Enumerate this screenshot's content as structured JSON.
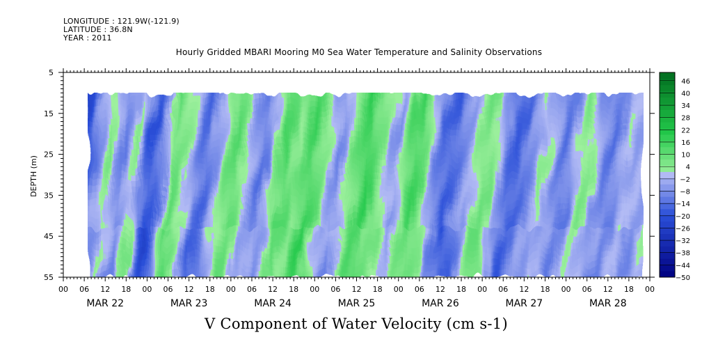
{
  "header": {
    "longitude": "LONGITUDE : 121.9W(-121.9)",
    "latitude": "LATITUDE : 36.8N",
    "year": "YEAR : 2011"
  },
  "title": "Hourly Gridded MBARI Mooring M0 Sea Water Temperature and Salinity Observations",
  "bottom_title": "V Component of Water Velocity (cm s-1)",
  "chart_data": {
    "type": "heatmap",
    "title": "Hourly Gridded MBARI Mooring M0 Sea Water Temperature and Salinity Observations",
    "xlabel": "",
    "ylabel": "DEPTH (m)",
    "colorbar_label": "V Component of Water Velocity (cm s-1)",
    "x_start_hour": 0,
    "x_end_hour": 168,
    "data_start_hour": 7,
    "data_end_hour": 166,
    "ylim": [
      55,
      5
    ],
    "data_depth_range": [
      10,
      55
    ],
    "x_hour_ticks": [
      "00",
      "06",
      "12",
      "18",
      "00",
      "06",
      "12",
      "18",
      "00",
      "06",
      "12",
      "18",
      "00",
      "06",
      "12",
      "18",
      "00",
      "06",
      "12",
      "18",
      "00",
      "06",
      "12",
      "18",
      "00",
      "06",
      "12",
      "18",
      "00"
    ],
    "day_labels": [
      "MAR 22",
      "MAR 23",
      "MAR 24",
      "MAR 25",
      "MAR 26",
      "MAR 27",
      "MAR 28"
    ],
    "y_ticks": [
      "5",
      "15",
      "25",
      "35",
      "45",
      "55"
    ],
    "colorbar_levels": [
      "46",
      "40",
      "34",
      "28",
      "22",
      "16",
      "10",
      "4",
      "-2",
      "-8",
      "-14",
      "-20",
      "-26",
      "-32",
      "-38",
      "-44",
      "-50"
    ],
    "colorbar_range": [
      -50,
      50
    ],
    "colorbar_step": 3,
    "v_profile": [
      [
        7,
        -22
      ],
      [
        9,
        -18
      ],
      [
        11,
        -8
      ],
      [
        13,
        -3
      ],
      [
        15,
        4
      ],
      [
        17,
        -5
      ],
      [
        19,
        -10
      ],
      [
        21,
        -4
      ],
      [
        23,
        2
      ],
      [
        25,
        -12
      ],
      [
        27,
        -18
      ],
      [
        29,
        -15
      ],
      [
        31,
        -6
      ],
      [
        33,
        8
      ],
      [
        35,
        6
      ],
      [
        37,
        2
      ],
      [
        39,
        -3
      ],
      [
        41,
        -12
      ],
      [
        43,
        -14
      ],
      [
        45,
        -8
      ],
      [
        47,
        -2
      ],
      [
        49,
        6
      ],
      [
        51,
        10
      ],
      [
        53,
        5
      ],
      [
        55,
        -3
      ],
      [
        57,
        -8
      ],
      [
        59,
        -12
      ],
      [
        61,
        -6
      ],
      [
        63,
        4
      ],
      [
        65,
        12
      ],
      [
        67,
        8
      ],
      [
        69,
        4
      ],
      [
        71,
        10
      ],
      [
        73,
        14
      ],
      [
        75,
        8
      ],
      [
        77,
        2
      ],
      [
        79,
        -4
      ],
      [
        81,
        -8
      ],
      [
        83,
        -2
      ],
      [
        85,
        6
      ],
      [
        87,
        12
      ],
      [
        89,
        16
      ],
      [
        91,
        10
      ],
      [
        93,
        4
      ],
      [
        95,
        -2
      ],
      [
        97,
        -6
      ],
      [
        99,
        2
      ],
      [
        101,
        10
      ],
      [
        103,
        14
      ],
      [
        105,
        8
      ],
      [
        107,
        -2
      ],
      [
        109,
        -10
      ],
      [
        111,
        -14
      ],
      [
        113,
        -16
      ],
      [
        115,
        -12
      ],
      [
        117,
        -6
      ],
      [
        119,
        -4
      ],
      [
        121,
        2
      ],
      [
        123,
        6
      ],
      [
        125,
        4
      ],
      [
        127,
        -4
      ],
      [
        129,
        -12
      ],
      [
        131,
        -16
      ],
      [
        133,
        -14
      ],
      [
        135,
        -10
      ],
      [
        137,
        -6
      ],
      [
        139,
        2
      ],
      [
        141,
        -2
      ],
      [
        143,
        -8
      ],
      [
        145,
        -12
      ],
      [
        147,
        -10
      ],
      [
        149,
        -2
      ],
      [
        151,
        4
      ],
      [
        153,
        2
      ],
      [
        155,
        -6
      ],
      [
        157,
        -10
      ],
      [
        159,
        -12
      ],
      [
        161,
        -8
      ],
      [
        163,
        -2
      ],
      [
        166,
        -4
      ]
    ],
    "colors": {
      "deep_negative": "#000080",
      "mid_negative": "#2a4fd8",
      "near_zero_negative": "#b5bdf5",
      "near_zero_positive": "#9ef09e",
      "mid_positive": "#22c84a",
      "deep_positive": "#006a1e",
      "no_data": "#ffffff"
    }
  }
}
